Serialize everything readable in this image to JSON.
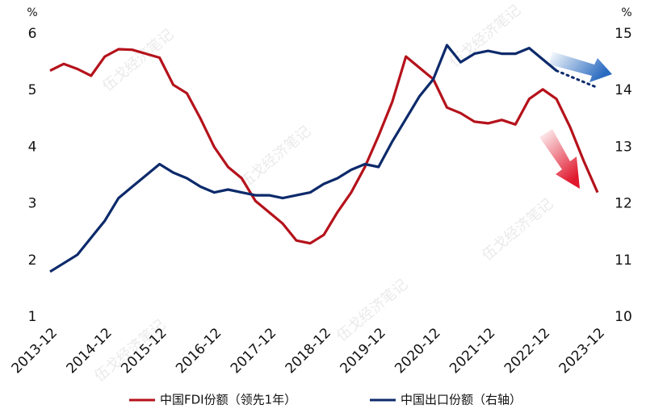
{
  "chart_data": {
    "type": "line",
    "y_unit": "%",
    "y2_unit": "%",
    "watermark": "伍戈经济笔记",
    "categories": [
      "2013-12",
      null,
      null,
      null,
      "2014-12",
      null,
      null,
      null,
      "2015-12",
      null,
      null,
      null,
      "2016-12",
      null,
      null,
      null,
      "2017-12",
      null,
      null,
      null,
      "2018-12",
      null,
      null,
      null,
      "2019-12",
      null,
      null,
      null,
      "2020-12",
      null,
      null,
      null,
      "2021-12",
      null,
      null,
      null,
      "2022-12",
      null,
      null,
      null,
      "2023-12"
    ],
    "ylim": [
      1,
      6
    ],
    "yticks": [
      1,
      2,
      3,
      4,
      5,
      6
    ],
    "y2lim": [
      10,
      15
    ],
    "y2ticks": [
      10,
      11,
      12,
      13,
      14,
      15
    ],
    "series": [
      {
        "name": "中国FDI份额（领先1年）",
        "color": "#b5121b",
        "values": [
          5.35,
          5.47,
          5.38,
          5.26,
          5.6,
          5.73,
          5.72,
          5.65,
          5.58,
          5.1,
          4.95,
          4.5,
          4.0,
          3.65,
          3.45,
          3.05,
          2.85,
          2.65,
          2.35,
          2.3,
          2.45,
          2.85,
          3.2,
          3.65,
          4.2,
          4.8,
          5.6,
          5.4,
          5.2,
          4.7,
          4.6,
          4.45,
          4.42,
          4.48,
          4.4,
          4.85,
          5.02,
          4.85,
          4.35,
          3.75,
          3.2
        ]
      },
      {
        "name": "中国出口份额（右轴）",
        "color": "#0d2a6b",
        "axis": "y2",
        "values": [
          10.8,
          10.95,
          11.1,
          11.4,
          11.7,
          12.1,
          12.3,
          12.5,
          12.7,
          12.55,
          12.45,
          12.3,
          12.2,
          12.25,
          12.2,
          12.15,
          12.15,
          12.1,
          12.15,
          12.2,
          12.35,
          12.45,
          12.6,
          12.7,
          12.65,
          13.1,
          13.5,
          13.9,
          14.2,
          14.8,
          14.5,
          14.65,
          14.7,
          14.65,
          14.65,
          14.75,
          14.55,
          14.35,
          null,
          null,
          null
        ],
        "dotted_values": [
          null,
          null,
          null,
          null,
          null,
          null,
          null,
          null,
          null,
          null,
          null,
          null,
          null,
          null,
          null,
          null,
          null,
          null,
          null,
          null,
          null,
          null,
          null,
          null,
          null,
          null,
          null,
          null,
          null,
          null,
          null,
          null,
          null,
          null,
          null,
          null,
          null,
          14.35,
          14.25,
          14.15,
          14.05
        ]
      }
    ]
  }
}
